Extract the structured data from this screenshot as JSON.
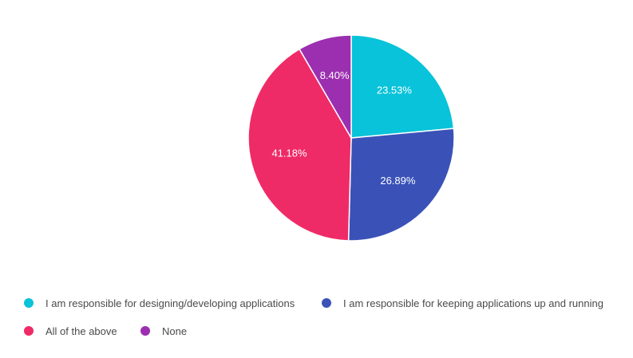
{
  "chart_data": {
    "type": "pie",
    "slices": [
      {
        "label": "I am responsible for designing/developing applications",
        "value": 23.53,
        "display": "23.53%",
        "color": "#08c3d9"
      },
      {
        "label": "I am responsible for keeping applications up and running",
        "value": 26.89,
        "display": "26.89%",
        "color": "#3a52b8"
      },
      {
        "label": "All of the above",
        "value": 41.18,
        "display": "41.18%",
        "color": "#ef2b67"
      },
      {
        "label": "None",
        "value": 8.4,
        "display": "8.40%",
        "color": "#9c2fb0"
      }
    ],
    "start_angle": "12 o'clock",
    "direction": "clockwise",
    "legend_position": "bottom"
  }
}
